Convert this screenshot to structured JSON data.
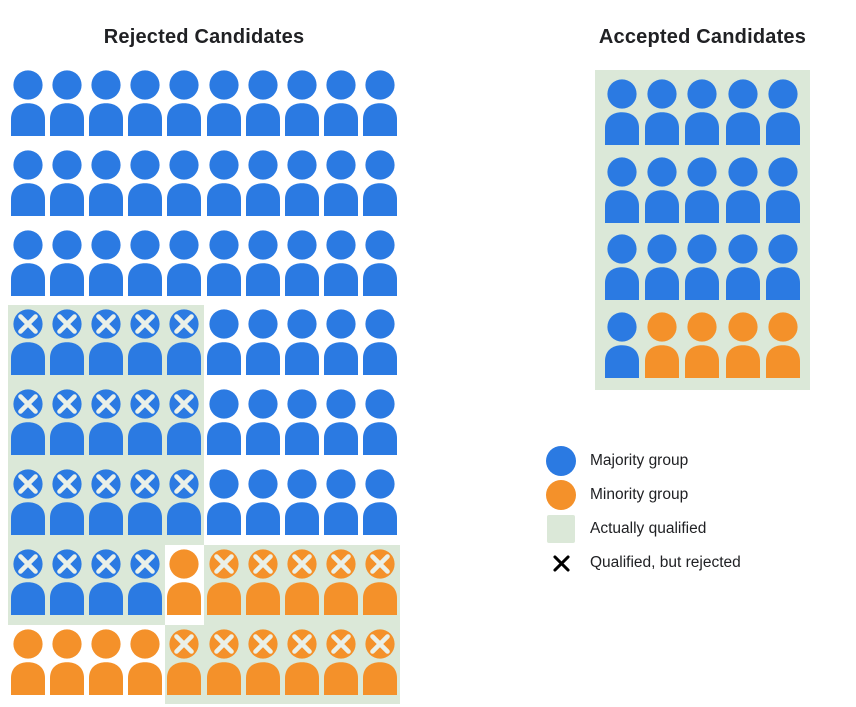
{
  "colors": {
    "majority": "#2B7AE2",
    "minority": "#F4912A",
    "qualified_bg": "#DBE8D8",
    "icon_x": "#EAF0E8",
    "legend_x": "#000000",
    "text": "#202124"
  },
  "cell_codes": {
    "b": {
      "group": "majority",
      "x": false,
      "qualified": false
    },
    "B": {
      "group": "majority",
      "x": true,
      "qualified": true
    },
    "o": {
      "group": "minority",
      "x": false,
      "qualified": false
    },
    "O": {
      "group": "minority",
      "x": true,
      "qualified": true
    },
    "q": {
      "group": "majority",
      "x": false,
      "qualified": true
    },
    "p": {
      "group": "minority",
      "x": false,
      "qualified": true
    }
  },
  "rejected": {
    "title": "Rejected Candidates",
    "columns": 10,
    "rows": [
      "bbbbbbbbbb",
      "bbbbbbbbbb",
      "bbbbbbbbbb",
      "BBBBBbbbbb",
      "BBBBBbbbbb",
      "BBBBBbbbbb",
      "BBBBoOOOOO",
      "ooooOOOOOO"
    ]
  },
  "accepted": {
    "title": "Accepted Candidates",
    "columns": 5,
    "rows": [
      "qqqqq",
      "qqqqq",
      "qqqqq",
      "qpppp"
    ]
  },
  "counts": {
    "rejected_majority_unqualified": 45,
    "rejected_majority_qualified_with_x": 19,
    "rejected_minority_unqualified": 5,
    "rejected_minority_qualified_with_x": 11,
    "accepted_majority": 16,
    "accepted_minority": 4
  },
  "legend": {
    "items": [
      {
        "swatch": "circle-majority",
        "label": "Majority group"
      },
      {
        "swatch": "circle-minority",
        "label": "Minority group"
      },
      {
        "swatch": "square-qualified",
        "label": "Actually qualified"
      },
      {
        "swatch": "x-mark",
        "label": "Qualified, but rejected"
      }
    ]
  }
}
